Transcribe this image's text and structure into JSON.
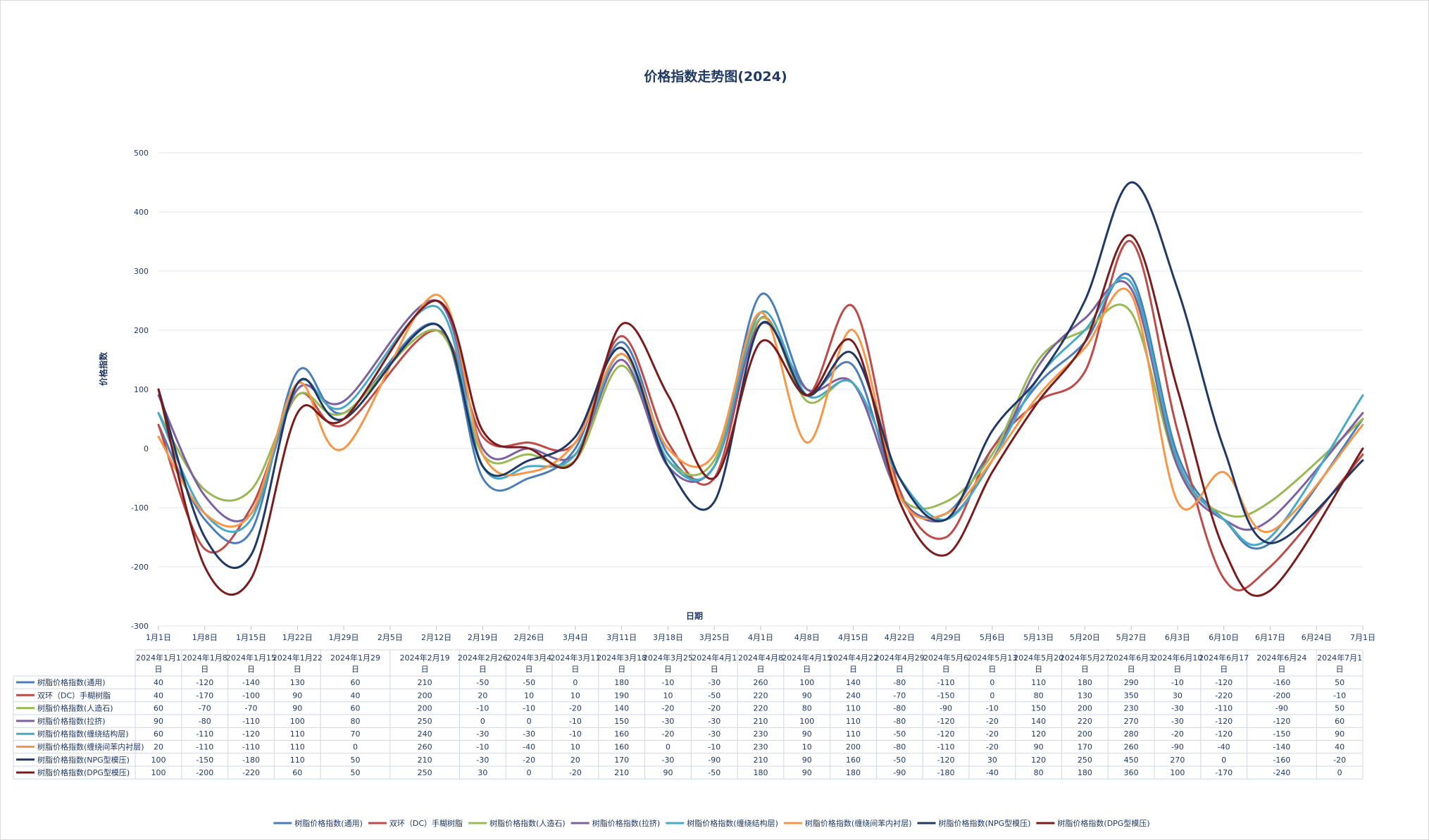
{
  "chart_data": {
    "type": "line",
    "title": "价格指数走势图(2024)",
    "xlabel": "日期",
    "ylabel": "价格指数",
    "ylim": [
      -300,
      500
    ],
    "y_ticks": [
      500,
      400,
      300,
      200,
      100,
      0,
      -100,
      -200,
      -300
    ],
    "grid": true,
    "legend_position": "bottom",
    "smooth": true,
    "x_axis_labels": [
      "1月1日",
      "1月8日",
      "1月15日",
      "1月22日",
      "1月29日",
      "2月5日",
      "2月12日",
      "2月19日",
      "2月26日",
      "3月4日",
      "3月11日",
      "3月18日",
      "3月25日",
      "4月1日",
      "4月8日",
      "4月15日",
      "4月22日",
      "4月29日",
      "5月6日",
      "5月13日",
      "5月20日",
      "5月27日",
      "6月3日",
      "6月10日",
      "6月17日",
      "6月24日",
      "7月1日"
    ],
    "table_headers": [
      "2024年1月1日",
      "2024年1月8日",
      "2024年1月15日",
      "2024年1月22日",
      "2024年1月29日",
      "2024年2月19日",
      "2024年2月26日",
      "2024年3月4日",
      "2024年3月11日",
      "2024年3月18日",
      "2024年3月25日",
      "2024年4月1日",
      "2024年4月8日",
      "2024年4月15日",
      "2024年4月22日",
      "2024年4月29日",
      "2024年5月6日",
      "2024年5月13日",
      "2024年5月20日",
      "2024年5月27日",
      "2024年6月3日",
      "2024年6月10日",
      "2024年6月17日",
      "2024年6月24日",
      "2024年7月1日"
    ],
    "x_index": [
      0,
      1,
      2,
      3,
      4,
      6,
      7,
      8,
      9,
      10,
      11,
      12,
      13,
      14,
      15,
      16,
      17,
      18,
      19,
      20,
      21,
      22,
      23,
      24,
      26
    ],
    "series": [
      {
        "name": "树脂价格指数(通用)",
        "color": "#4a7ebb",
        "values": [
          40,
          -120,
          -140,
          130,
          60,
          210,
          -50,
          -50,
          0,
          180,
          -10,
          -30,
          260,
          100,
          140,
          -80,
          -110,
          0,
          110,
          180,
          290,
          -10,
          -120,
          -160,
          50
        ]
      },
      {
        "name": "双环（DC）手糊树脂",
        "color": "#be4b48",
        "values": [
          40,
          -170,
          -100,
          90,
          40,
          200,
          20,
          10,
          10,
          190,
          10,
          -50,
          220,
          90,
          240,
          -70,
          -150,
          0,
          80,
          130,
          350,
          30,
          -220,
          -200,
          -10
        ]
      },
      {
        "name": "树脂价格指数(人造石)",
        "color": "#98b954",
        "values": [
          60,
          -70,
          -70,
          90,
          60,
          200,
          -10,
          -10,
          -20,
          140,
          -20,
          -20,
          220,
          80,
          110,
          -80,
          -90,
          -10,
          150,
          200,
          230,
          -30,
          -110,
          -90,
          50
        ]
      },
      {
        "name": "树脂价格指数(拉挤)",
        "color": "#7d60a0",
        "values": [
          90,
          -80,
          -110,
          100,
          80,
          250,
          0,
          0,
          -10,
          150,
          -30,
          -30,
          210,
          100,
          110,
          -80,
          -120,
          -20,
          140,
          220,
          270,
          -30,
          -120,
          -120,
          60
        ]
      },
      {
        "name": "树脂价格指数(缠绕结构层)",
        "color": "#46aac5",
        "values": [
          60,
          -110,
          -120,
          110,
          70,
          240,
          -30,
          -30,
          -10,
          160,
          -20,
          -30,
          230,
          90,
          110,
          -50,
          -120,
          -20,
          120,
          200,
          280,
          -20,
          -120,
          -150,
          90
        ]
      },
      {
        "name": "树脂价格指数(缠绕间苯内衬层)",
        "color": "#f79646",
        "values": [
          20,
          -110,
          -110,
          110,
          0,
          260,
          -10,
          -40,
          10,
          160,
          0,
          -10,
          230,
          10,
          200,
          -80,
          -110,
          -20,
          90,
          170,
          260,
          -90,
          -40,
          -140,
          40
        ]
      },
      {
        "name": "树脂价格指数(NPG型模压)",
        "color": "#1f3864",
        "values": [
          100,
          -150,
          -180,
          110,
          50,
          210,
          -30,
          -20,
          20,
          170,
          -30,
          -90,
          210,
          90,
          160,
          -50,
          -120,
          30,
          120,
          250,
          450,
          270,
          0,
          -160,
          -20
        ]
      },
      {
        "name": "树脂价格指数(DPG型模压)",
        "color": "#7b1c1c",
        "values": [
          100,
          -200,
          -220,
          60,
          50,
          250,
          30,
          0,
          -20,
          210,
          90,
          -50,
          180,
          90,
          180,
          -90,
          -180,
          -40,
          80,
          180,
          360,
          100,
          -170,
          -240,
          0
        ]
      }
    ]
  }
}
